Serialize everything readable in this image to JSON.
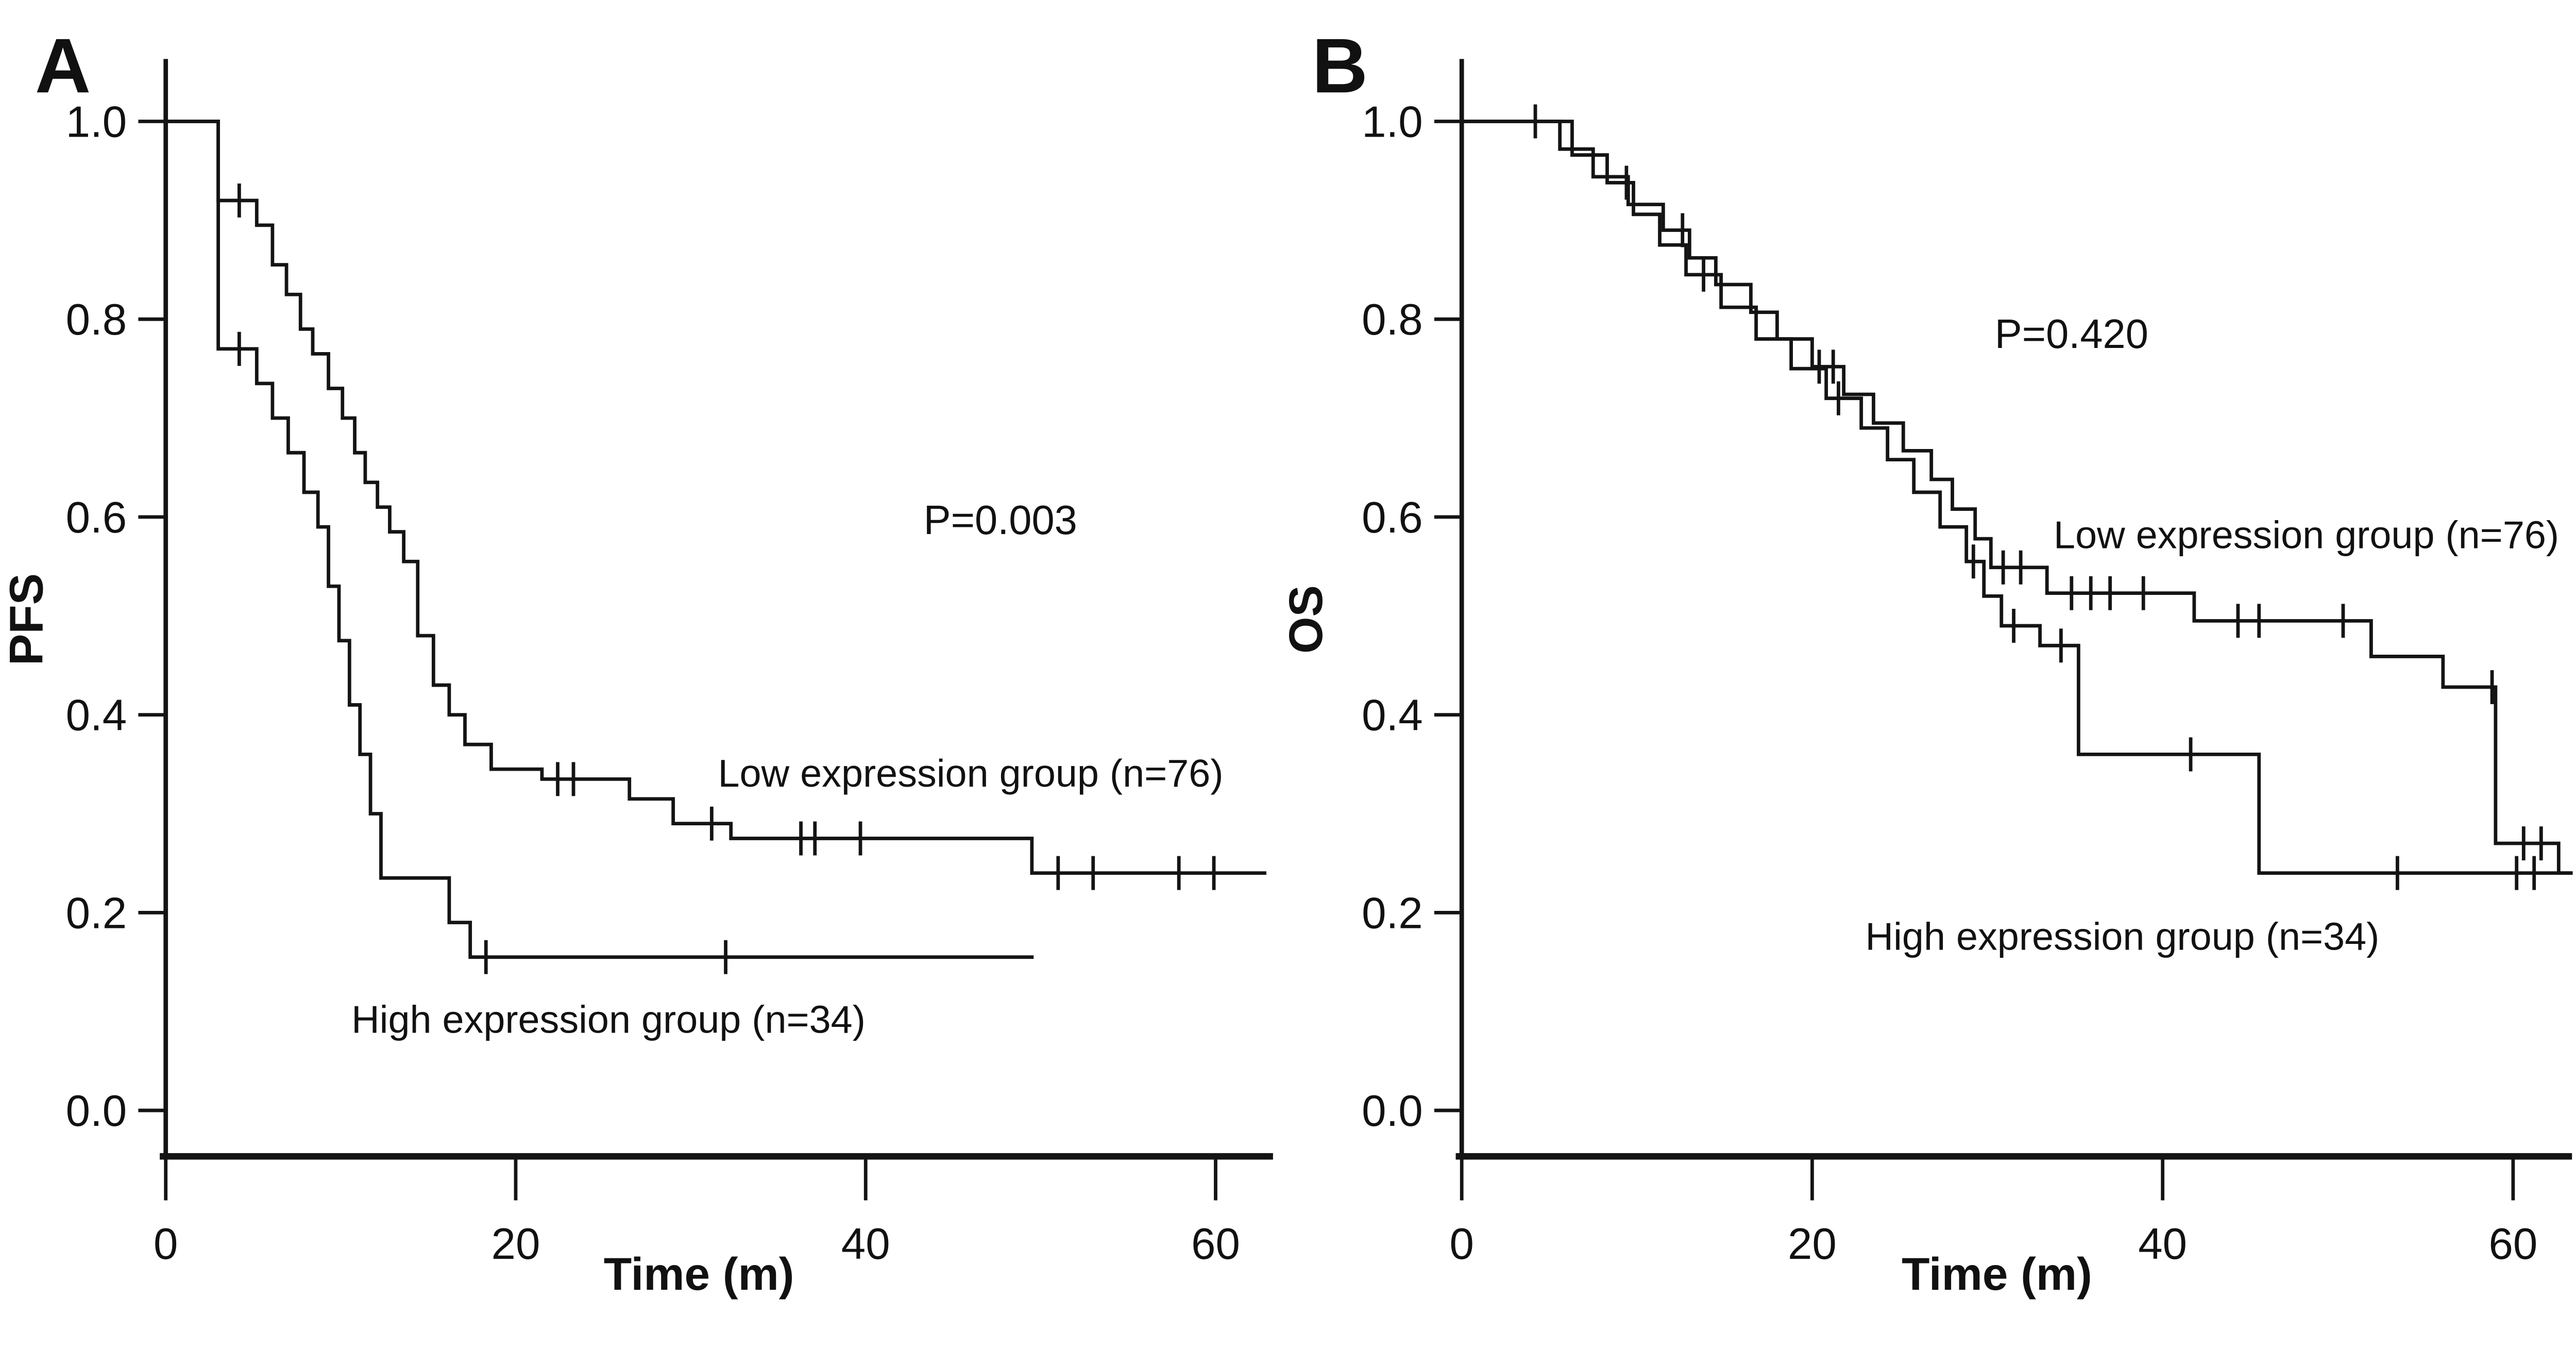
{
  "chart_data": [
    {
      "type": "line",
      "subtype": "kaplan-meier-step",
      "panel_letter": "A",
      "title": "",
      "xlabel": "Time (m)",
      "ylabel": "PFS",
      "xlim": [
        0,
        63.5
      ],
      "ylim": [
        0,
        1.0
      ],
      "xticks": [
        0,
        20,
        40,
        60
      ],
      "yticks": [
        "0.0",
        "0.2",
        "0.4",
        "0.6",
        "0.8",
        "1.0"
      ],
      "grid": false,
      "legend_position": "inline-annotations",
      "annotations": [
        {
          "text": "P=0.003",
          "t": 47.7,
          "s": 0.597
        }
      ],
      "series": [
        {
          "name": "Low expression group (n=76)",
          "label_anchor": {
            "t": 46.0,
            "s": 0.341
          },
          "steps": [
            [
              0,
              1.0
            ],
            [
              3,
              0.92
            ],
            [
              5.2,
              0.895
            ],
            [
              6.1,
              0.855
            ],
            [
              6.9,
              0.825
            ],
            [
              7.7,
              0.79
            ],
            [
              8.4,
              0.765
            ],
            [
              9.3,
              0.73
            ],
            [
              10.1,
              0.7
            ],
            [
              10.8,
              0.665
            ],
            [
              11.4,
              0.635
            ],
            [
              12.1,
              0.61
            ],
            [
              12.8,
              0.585
            ],
            [
              13.6,
              0.555
            ],
            [
              14.4,
              0.48
            ],
            [
              15.3,
              0.43
            ],
            [
              16.2,
              0.4
            ],
            [
              17.1,
              0.37
            ],
            [
              18.6,
              0.345
            ],
            [
              21.5,
              0.335
            ],
            [
              26.5,
              0.315
            ],
            [
              29,
              0.29
            ],
            [
              32.3,
              0.275
            ],
            [
              49.5,
              0.24
            ]
          ],
          "censor_times": [
            4.2,
            22.4,
            23.3,
            31.2,
            36.3,
            37.1,
            39.7,
            51,
            53,
            57.9,
            59.9
          ],
          "end_time": 62.9
        },
        {
          "name": "High expression group (n=34)",
          "label_anchor": {
            "t": 25.3,
            "s": 0.092
          },
          "steps": [
            [
              0,
              1.0
            ],
            [
              3,
              0.77
            ],
            [
              5.2,
              0.735
            ],
            [
              6.1,
              0.7
            ],
            [
              7,
              0.665
            ],
            [
              7.9,
              0.625
            ],
            [
              8.7,
              0.59
            ],
            [
              9.3,
              0.53
            ],
            [
              9.9,
              0.475
            ],
            [
              10.5,
              0.41
            ],
            [
              11.1,
              0.36
            ],
            [
              11.7,
              0.3
            ],
            [
              12.3,
              0.235
            ],
            [
              16.2,
              0.19
            ],
            [
              17.4,
              0.155
            ]
          ],
          "censor_times": [
            4.2,
            18.3,
            32
          ],
          "end_time": 49.6
        }
      ]
    },
    {
      "type": "line",
      "subtype": "kaplan-meier-step",
      "panel_letter": "B",
      "title": "",
      "xlabel": "Time (m)",
      "ylabel": "OS",
      "xlim": [
        0,
        63.5
      ],
      "ylim": [
        0,
        1.0
      ],
      "xticks": [
        0,
        20,
        40,
        60
      ],
      "yticks": [
        "0.0",
        "0.2",
        "0.4",
        "0.6",
        "0.8",
        "1.0"
      ],
      "grid": false,
      "legend_position": "inline-annotations",
      "annotations": [
        {
          "text": "P=0.420",
          "t": 34.8,
          "s": 0.785
        }
      ],
      "series": [
        {
          "name": "Low expression group (n=76)",
          "label_anchor": {
            "t": 48.2,
            "s": 0.582
          },
          "steps": [
            [
              0,
              1.0
            ],
            [
              5.6,
              0.972
            ],
            [
              7.5,
              0.944
            ],
            [
              9.5,
              0.916
            ],
            [
              11.5,
              0.89
            ],
            [
              13,
              0.862
            ],
            [
              14.5,
              0.835
            ],
            [
              16.5,
              0.807
            ],
            [
              18,
              0.78
            ],
            [
              20,
              0.752
            ],
            [
              21.8,
              0.724
            ],
            [
              23.5,
              0.695
            ],
            [
              25.2,
              0.667
            ],
            [
              26.8,
              0.638
            ],
            [
              28,
              0.608
            ],
            [
              29.3,
              0.578
            ],
            [
              30.2,
              0.549
            ],
            [
              33.4,
              0.523
            ],
            [
              41.8,
              0.495
            ],
            [
              51.9,
              0.459
            ],
            [
              56,
              0.428
            ],
            [
              59,
              0.27
            ],
            [
              62.6,
              0.24
            ]
          ],
          "censor_times": [
            4.2,
            12.6,
            20.4,
            21.2,
            30.9,
            31.9,
            34.8,
            35.9,
            37,
            38.9,
            44.3,
            45.5,
            50.3,
            58.8,
            60.6,
            61.6
          ],
          "end_time": 63.4
        },
        {
          "name": "High expression group (n=34)",
          "label_anchor": {
            "t": 37.7,
            "s": 0.176
          },
          "steps": [
            [
              0,
              1.0
            ],
            [
              6.3,
              0.966
            ],
            [
              8.3,
              0.938
            ],
            [
              9.8,
              0.906
            ],
            [
              11.3,
              0.875
            ],
            [
              12.8,
              0.845
            ],
            [
              14.8,
              0.812
            ],
            [
              16.8,
              0.78
            ],
            [
              18.8,
              0.75
            ],
            [
              20.8,
              0.72
            ],
            [
              22.8,
              0.69
            ],
            [
              24.3,
              0.658
            ],
            [
              25.8,
              0.625
            ],
            [
              27.3,
              0.59
            ],
            [
              28.8,
              0.555
            ],
            [
              29.8,
              0.52
            ],
            [
              30.8,
              0.49
            ],
            [
              33,
              0.47
            ],
            [
              35.2,
              0.36
            ],
            [
              45.5,
              0.24
            ]
          ],
          "censor_times": [
            9.4,
            13.8,
            21.5,
            29.2,
            31.5,
            34.2,
            41.6,
            53.4,
            60.2,
            61.2
          ],
          "end_time": 63.4
        }
      ]
    }
  ]
}
